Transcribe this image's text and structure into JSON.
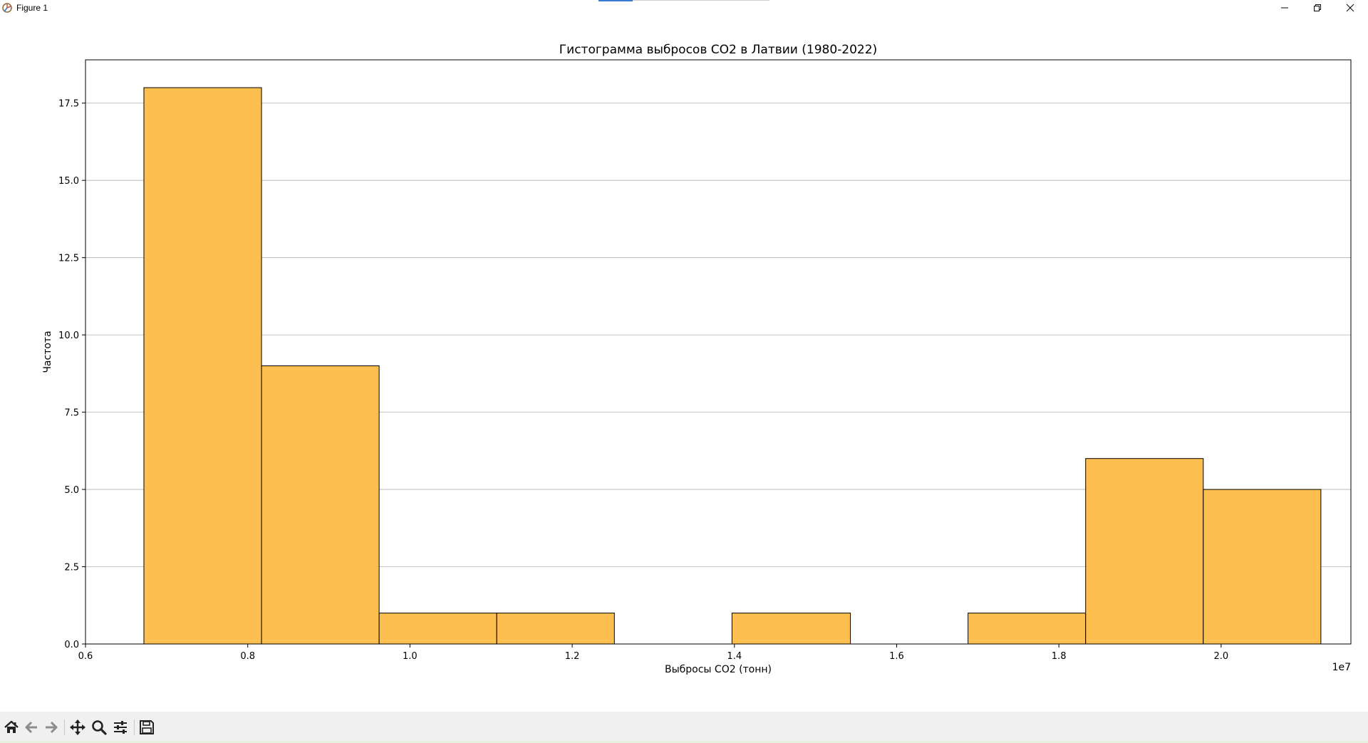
{
  "window": {
    "title": "Figure 1",
    "accent_color": "#3a7bd5"
  },
  "toolbar": {
    "buttons": [
      {
        "name": "home",
        "icon": "home-icon"
      },
      {
        "name": "back",
        "icon": "arrow-left-icon"
      },
      {
        "name": "forward",
        "icon": "arrow-right-icon"
      },
      {
        "name": "pan",
        "icon": "move-icon"
      },
      {
        "name": "zoom",
        "icon": "search-icon"
      },
      {
        "name": "configure",
        "icon": "sliders-icon"
      },
      {
        "name": "save",
        "icon": "save-icon"
      }
    ]
  },
  "chart_data": {
    "type": "bar",
    "title": "Гистограмма выбросов CO2 в Латвии (1980-2022)",
    "xlabel": "Выбросы CO2 (тонн)",
    "ylabel": "Частота",
    "x_offset_label": "1e7",
    "xlim": [
      0.6,
      2.16
    ],
    "ylim": [
      0,
      18.9
    ],
    "xticks": [
      0.6,
      0.8,
      1.0,
      1.2,
      1.4,
      1.6,
      1.8,
      2.0
    ],
    "xtick_labels": [
      "0.6",
      "0.8",
      "1.0",
      "1.2",
      "1.4",
      "1.6",
      "1.8",
      "2.0"
    ],
    "yticks": [
      0.0,
      2.5,
      5.0,
      7.5,
      10.0,
      12.5,
      15.0,
      17.5
    ],
    "ytick_labels": [
      "0.0",
      "2.5",
      "5.0",
      "7.5",
      "10.0",
      "12.5",
      "15.0",
      "17.5"
    ],
    "bin_edges": [
      0.672,
      0.817,
      0.962,
      1.107,
      1.252,
      1.397,
      1.543,
      1.688,
      1.833,
      1.978,
      2.123
    ],
    "values": [
      18,
      9,
      1,
      1,
      0,
      1,
      0,
      1,
      6,
      5
    ],
    "grid": "horizontal",
    "bar_color": "#fdbf4f",
    "edge_color": "#000000"
  }
}
